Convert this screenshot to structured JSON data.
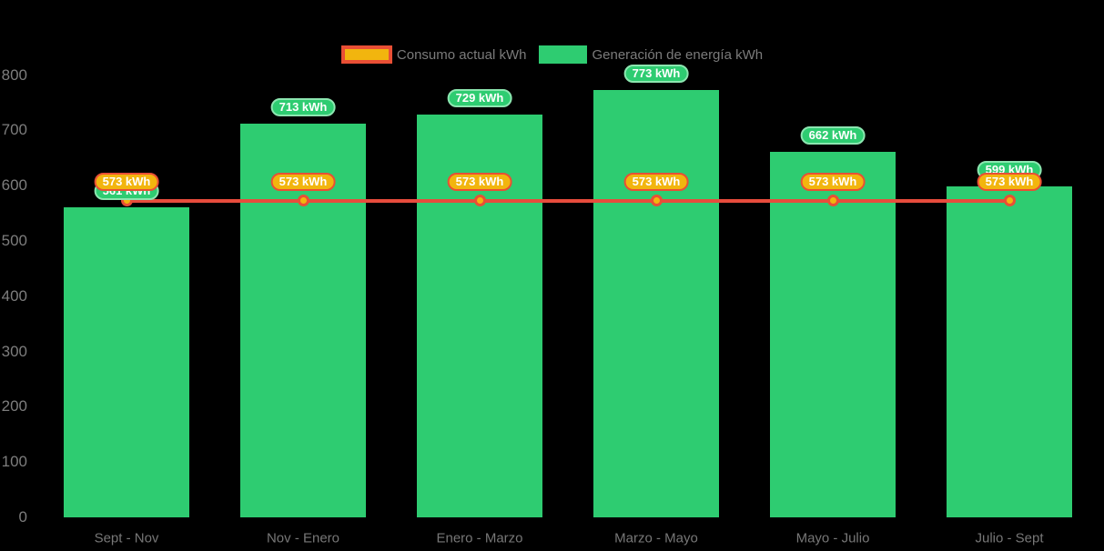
{
  "background": "#000000",
  "colors": {
    "bar_green": "#2ecc71",
    "green_badge_border": "#8ce6b0",
    "line_red": "#e74c3c",
    "marker_gold": "#f2b50e",
    "badge_gold": "#f2b50e",
    "badge_border_tomato": "#e94f35",
    "badge_text": "#ffffff",
    "axis_text": "#7d7d7d",
    "legend_text": "#7b7b7b"
  },
  "chart_data": {
    "type": "combo",
    "categories": [
      "Sept - Nov",
      "Nov - Enero",
      "Enero - Marzo",
      "Marzo - Mayo",
      "Mayo - Julio",
      "Julio - Sept"
    ],
    "series": [
      {
        "name": "Consumo actual kWh",
        "type": "line",
        "color": "#e74c3c",
        "marker_fill": "#f2b50e",
        "marker_border": "#e94f35",
        "values": [
          573,
          573,
          573,
          573,
          573,
          573
        ],
        "data_labels": [
          "573 kWh",
          "573 kWh",
          "573 kWh",
          "573 kWh",
          "573 kWh",
          "573 kWh"
        ]
      },
      {
        "name": "Generación de energía kWh",
        "type": "bar",
        "color": "#2ecc71",
        "values": [
          561,
          713,
          729,
          773,
          662,
          599
        ],
        "data_labels": [
          "561 kWh",
          "713 kWh",
          "729 kWh",
          "773 kWh",
          "662 kWh",
          "599 kWh"
        ]
      }
    ],
    "value_suffix": " kWh",
    "title": "",
    "xlabel": "",
    "ylabel": "",
    "ylim": [
      0,
      800
    ],
    "ytick_step": 100,
    "ytick_labels": [
      "0",
      "100",
      "200",
      "300",
      "400",
      "500",
      "600",
      "700",
      "800"
    ],
    "grid": false,
    "legend_position": "top-center"
  }
}
